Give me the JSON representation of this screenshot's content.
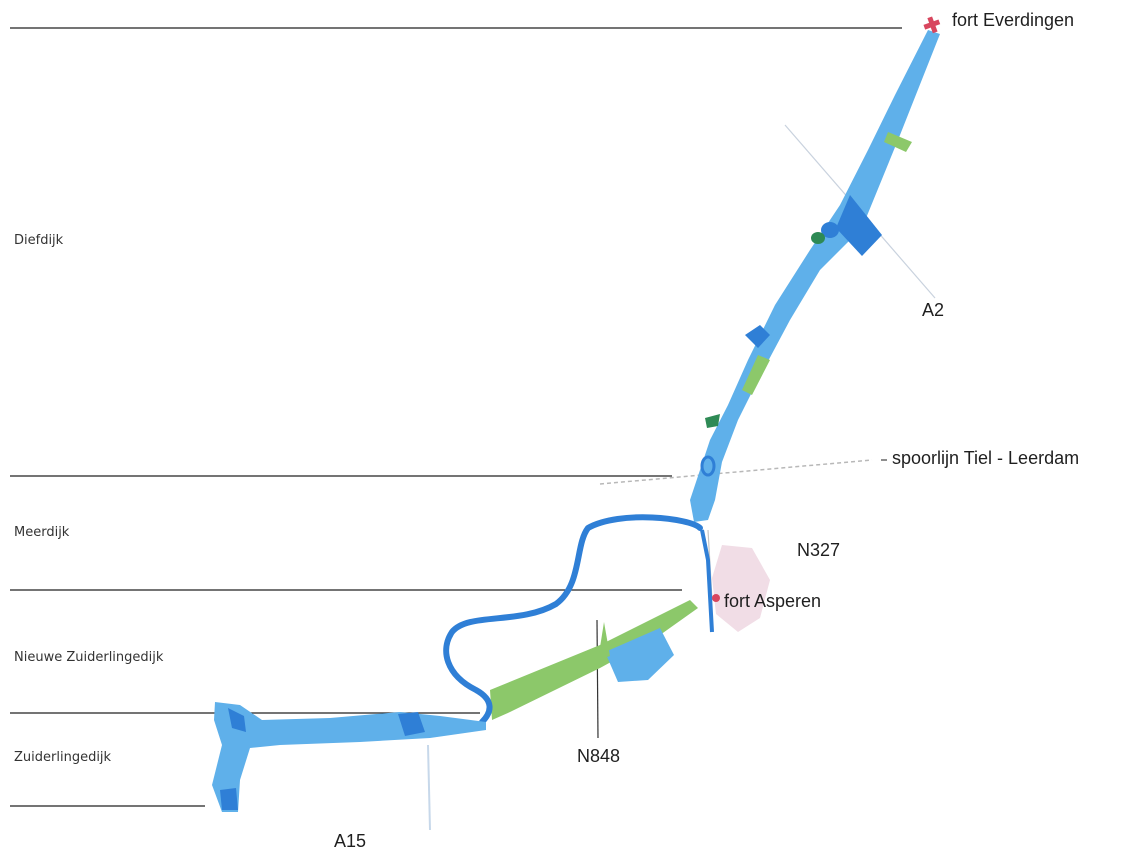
{
  "map": {
    "section_labels": {
      "diefdijk": "Diefdijk",
      "meerdijk": "Meerdijk",
      "nieuwe_zuiderlingedijk": "Nieuwe Zuiderlingedijk",
      "zuiderlingedijk": "Zuiderlingedijk"
    },
    "place_labels": {
      "fort_everdingen": "fort Everdingen",
      "fort_asperen": "fort Asperen"
    },
    "road_labels": {
      "a2": "A2",
      "railway": "spoorlijn Tiel - Leerdam",
      "n327": "N327",
      "n848": "N848",
      "a15": "A15"
    },
    "colors": {
      "water": "#2f7fd6",
      "wet_area": "#5fb0ea",
      "green_zone": "#8cc86a",
      "dark_green": "#2e8a55",
      "fort": "#d8465e",
      "fort_area": "#f1dde6",
      "boundary_line": "#222222"
    }
  }
}
